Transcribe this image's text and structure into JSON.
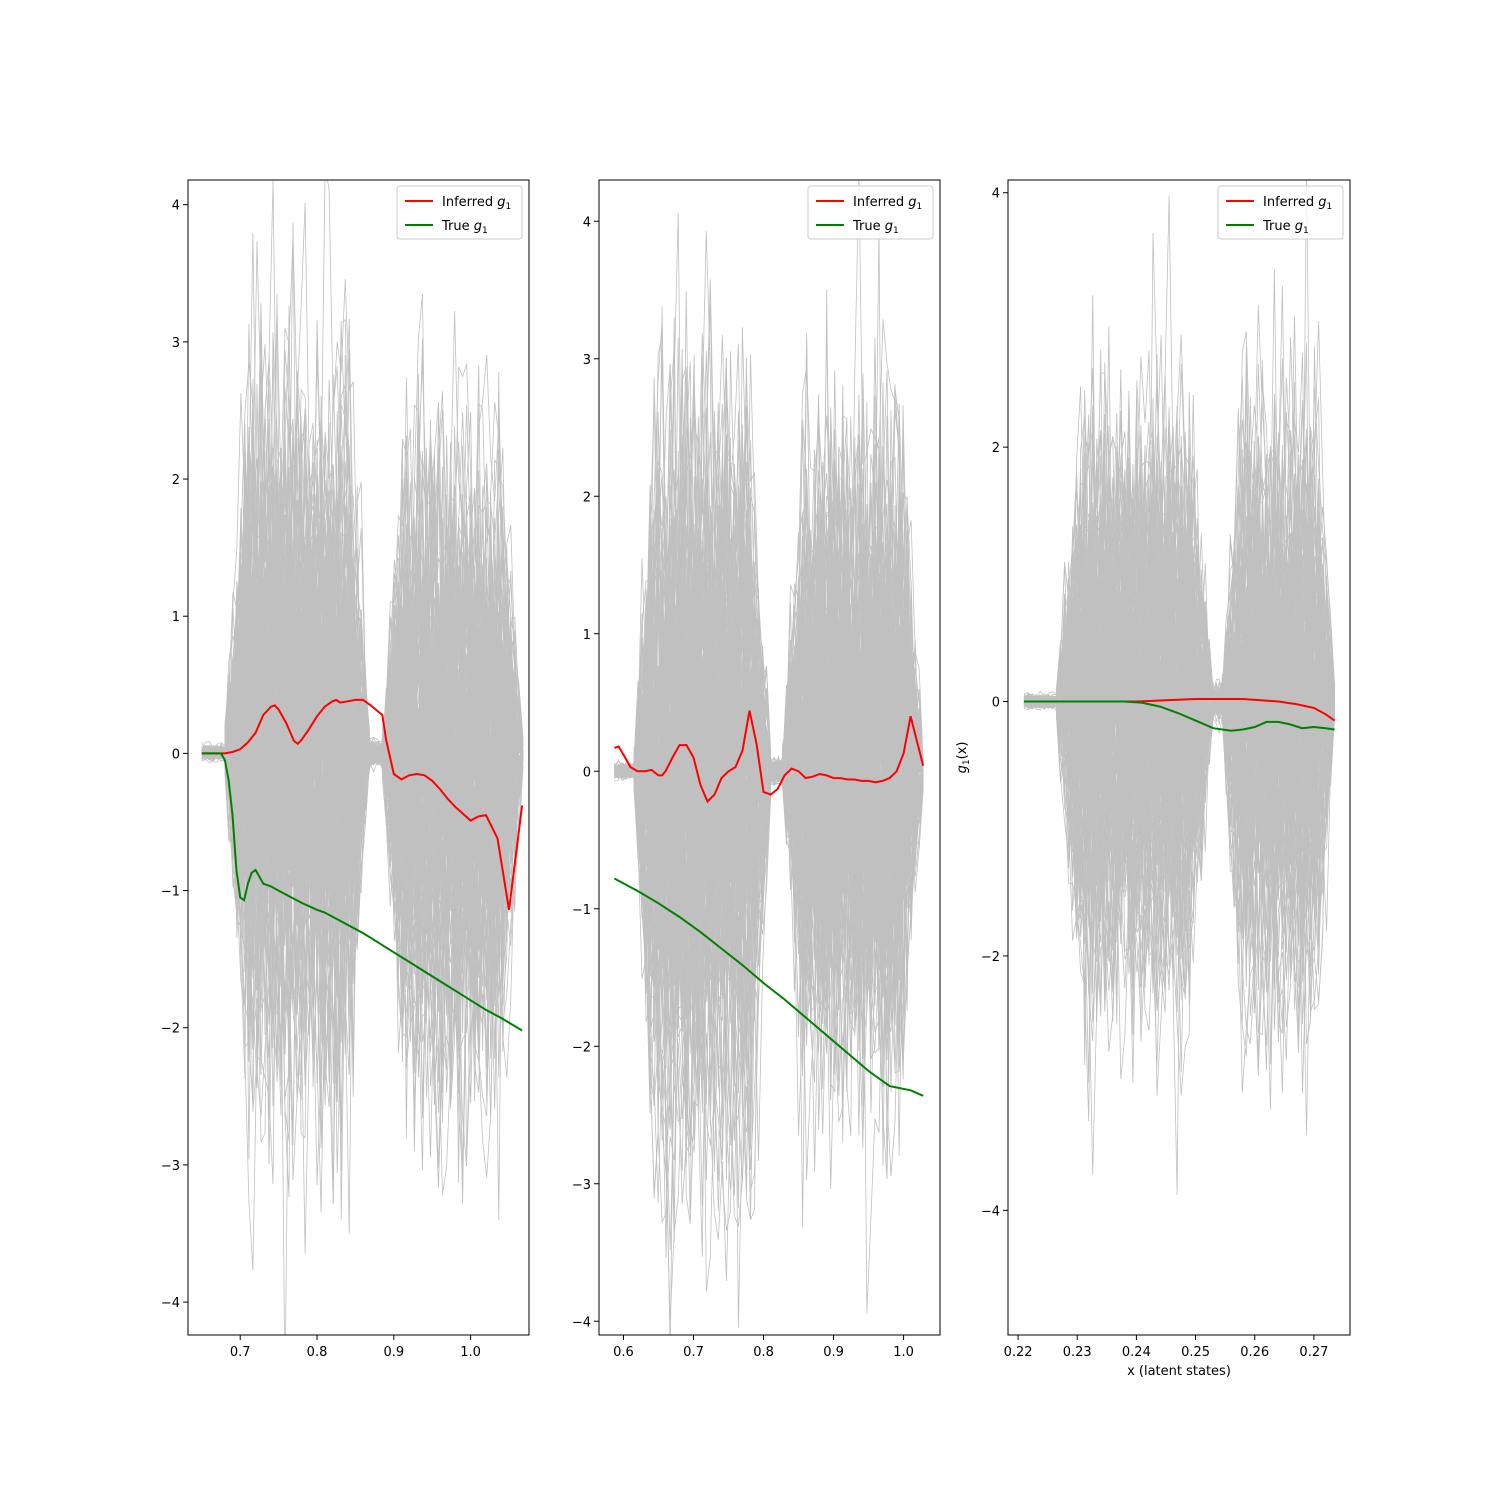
{
  "chart_data": [
    {
      "type": "line",
      "xticks": [
        "0.7",
        "0.8",
        "0.9",
        "1.0"
      ],
      "xtick_values": [
        0.7,
        0.8,
        0.9,
        1.0
      ],
      "yticks": [
        "4",
        "3",
        "2",
        "1",
        "0",
        "−1",
        "−2",
        "−3",
        "−4"
      ],
      "ytick_values": [
        4,
        3,
        2,
        1,
        0,
        -1,
        -2,
        -3,
        -4
      ],
      "xlim": [
        0.632,
        1.076
      ],
      "ylim": [
        -4.24,
        4.18
      ],
      "xlabel": "",
      "ylabel": "",
      "legend_position": "top-right",
      "legend": {
        "inferred": "Inferred g",
        "true": "True g",
        "subscript": "1"
      },
      "colors": {
        "inferred": "#ff0000",
        "true": "#008000",
        "samples": "#c0c0c0"
      },
      "samples": {
        "count": 120,
        "segments": [
          {
            "x0": 0.65,
            "x1": 0.68,
            "amp": 0.03
          },
          {
            "x0": 0.68,
            "x1": 0.868,
            "amp": 1.5
          },
          {
            "x0": 0.868,
            "x1": 0.885,
            "amp": 0.05
          },
          {
            "x0": 0.885,
            "x1": 1.068,
            "amp": 1.3
          }
        ]
      },
      "series": [
        {
          "name": "Inferred g",
          "x": [
            0.65,
            0.68,
            0.69,
            0.7,
            0.71,
            0.72,
            0.73,
            0.74,
            0.745,
            0.75,
            0.76,
            0.77,
            0.775,
            0.78,
            0.79,
            0.8,
            0.81,
            0.82,
            0.825,
            0.83,
            0.84,
            0.85,
            0.86,
            0.87,
            0.885,
            0.89,
            0.9,
            0.91,
            0.92,
            0.93,
            0.94,
            0.95,
            0.96,
            0.97,
            0.98,
            0.99,
            1.0,
            1.01,
            1.02,
            1.035,
            1.05,
            1.067
          ],
          "y": [
            0.0,
            0.0,
            0.01,
            0.03,
            0.08,
            0.15,
            0.28,
            0.34,
            0.35,
            0.32,
            0.22,
            0.09,
            0.07,
            0.1,
            0.18,
            0.27,
            0.34,
            0.38,
            0.39,
            0.37,
            0.38,
            0.39,
            0.39,
            0.35,
            0.28,
            0.1,
            -0.15,
            -0.19,
            -0.16,
            -0.15,
            -0.16,
            -0.2,
            -0.26,
            -0.33,
            -0.39,
            -0.44,
            -0.49,
            -0.46,
            -0.45,
            -0.62,
            -1.14,
            -0.38
          ]
        },
        {
          "name": "True g",
          "x": [
            0.65,
            0.675,
            0.68,
            0.685,
            0.69,
            0.695,
            0.7,
            0.705,
            0.71,
            0.715,
            0.72,
            0.725,
            0.73,
            0.74,
            0.75,
            0.76,
            0.78,
            0.8,
            0.81,
            0.82,
            0.84,
            0.86,
            0.88,
            0.9,
            0.92,
            0.94,
            0.96,
            0.98,
            1.0,
            1.02,
            1.04,
            1.067
          ],
          "y": [
            0.0,
            0.0,
            -0.05,
            -0.2,
            -0.45,
            -0.85,
            -1.05,
            -1.07,
            -0.95,
            -0.87,
            -0.85,
            -0.9,
            -0.95,
            -0.97,
            -1.0,
            -1.03,
            -1.09,
            -1.14,
            -1.16,
            -1.19,
            -1.25,
            -1.31,
            -1.38,
            -1.45,
            -1.52,
            -1.59,
            -1.66,
            -1.73,
            -1.8,
            -1.87,
            -1.93,
            -2.02
          ]
        }
      ]
    },
    {
      "type": "line",
      "xticks": [
        "0.6",
        "0.7",
        "0.8",
        "0.9",
        "1.0"
      ],
      "xtick_values": [
        0.6,
        0.7,
        0.8,
        0.9,
        1.0
      ],
      "yticks": [
        "4",
        "3",
        "2",
        "1",
        "0",
        "−1",
        "−2",
        "−3",
        "−4"
      ],
      "ytick_values": [
        4,
        3,
        2,
        1,
        0,
        -1,
        -2,
        -3,
        -4
      ],
      "xlim": [
        0.565,
        1.052
      ],
      "ylim": [
        -4.1,
        4.3
      ],
      "xlabel": "",
      "ylabel": "",
      "legend_position": "top-right",
      "legend": {
        "inferred": "Inferred g",
        "true": "True g",
        "subscript": "1"
      },
      "colors": {
        "inferred": "#ff0000",
        "true": "#008000",
        "samples": "#c0c0c0"
      },
      "samples": {
        "count": 120,
        "segments": [
          {
            "x0": 0.587,
            "x1": 0.615,
            "amp": 0.03
          },
          {
            "x0": 0.615,
            "x1": 0.81,
            "amp": 1.5
          },
          {
            "x0": 0.81,
            "x1": 0.827,
            "amp": 0.05
          },
          {
            "x0": 0.827,
            "x1": 1.028,
            "amp": 1.4
          }
        ]
      },
      "series": [
        {
          "name": "Inferred g",
          "x": [
            0.587,
            0.593,
            0.6,
            0.61,
            0.62,
            0.63,
            0.64,
            0.65,
            0.655,
            0.66,
            0.67,
            0.68,
            0.69,
            0.7,
            0.71,
            0.72,
            0.73,
            0.74,
            0.75,
            0.76,
            0.77,
            0.78,
            0.79,
            0.8,
            0.81,
            0.82,
            0.83,
            0.84,
            0.85,
            0.86,
            0.87,
            0.88,
            0.89,
            0.9,
            0.91,
            0.92,
            0.93,
            0.94,
            0.95,
            0.96,
            0.97,
            0.98,
            0.99,
            1.0,
            1.01,
            1.028
          ],
          "y": [
            0.17,
            0.18,
            0.12,
            0.03,
            0.0,
            0.0,
            0.01,
            -0.03,
            -0.03,
            0.0,
            0.1,
            0.19,
            0.19,
            0.1,
            -0.1,
            -0.22,
            -0.17,
            -0.05,
            0.0,
            0.03,
            0.15,
            0.44,
            0.2,
            -0.15,
            -0.17,
            -0.13,
            -0.03,
            0.02,
            0.0,
            -0.05,
            -0.04,
            -0.02,
            -0.03,
            -0.05,
            -0.05,
            -0.06,
            -0.06,
            -0.07,
            -0.07,
            -0.08,
            -0.07,
            -0.05,
            0.0,
            0.13,
            0.4,
            0.04
          ]
        },
        {
          "name": "True g",
          "x": [
            0.587,
            0.62,
            0.65,
            0.68,
            0.71,
            0.74,
            0.77,
            0.8,
            0.83,
            0.86,
            0.89,
            0.92,
            0.95,
            0.98,
            1.01,
            1.028
          ],
          "y": [
            -0.78,
            -0.87,
            -0.96,
            -1.06,
            -1.17,
            -1.29,
            -1.41,
            -1.54,
            -1.66,
            -1.79,
            -1.92,
            -2.05,
            -2.18,
            -2.29,
            -2.32,
            -2.36
          ]
        }
      ]
    },
    {
      "type": "line",
      "xticks": [
        "0.22",
        "0.23",
        "0.24",
        "0.25",
        "0.26",
        "0.27"
      ],
      "xtick_values": [
        0.22,
        0.23,
        0.24,
        0.25,
        0.26,
        0.27
      ],
      "yticks": [
        "4",
        "2",
        "0",
        "−2",
        "−4"
      ],
      "ytick_values": [
        4,
        2,
        0,
        -2,
        -4
      ],
      "xlim": [
        0.2183,
        0.2761
      ],
      "ylim": [
        -4.98,
        4.1
      ],
      "xlabel": "x (latent states)",
      "ylabel_main": "g",
      "ylabel_sub": "1",
      "ylabel_tail": "(x)",
      "legend_position": "top-right",
      "legend": {
        "inferred": "Inferred g",
        "true": "True g",
        "subscript": "1"
      },
      "colors": {
        "inferred": "#ff0000",
        "true": "#008000",
        "samples": "#c0c0c0"
      },
      "samples": {
        "count": 120,
        "segments": [
          {
            "x0": 0.221,
            "x1": 0.2265,
            "amp": 0.03
          },
          {
            "x0": 0.2265,
            "x1": 0.253,
            "amp": 1.35
          },
          {
            "x0": 0.253,
            "x1": 0.2545,
            "amp": 0.08
          },
          {
            "x0": 0.2545,
            "x1": 0.2735,
            "amp": 1.25
          }
        ]
      },
      "series": [
        {
          "name": "Inferred g",
          "x": [
            0.221,
            0.235,
            0.24,
            0.245,
            0.25,
            0.255,
            0.258,
            0.261,
            0.264,
            0.267,
            0.27,
            0.272,
            0.2735
          ],
          "y": [
            0.0,
            0.0,
            0.0,
            0.01,
            0.02,
            0.02,
            0.02,
            0.01,
            0.0,
            -0.02,
            -0.05,
            -0.1,
            -0.15
          ]
        },
        {
          "name": "True g",
          "x": [
            0.221,
            0.238,
            0.241,
            0.244,
            0.247,
            0.25,
            0.253,
            0.256,
            0.258,
            0.26,
            0.262,
            0.264,
            0.266,
            0.268,
            0.27,
            0.272,
            0.2735
          ],
          "y": [
            0.0,
            0.0,
            -0.01,
            -0.04,
            -0.09,
            -0.15,
            -0.21,
            -0.23,
            -0.22,
            -0.2,
            -0.16,
            -0.16,
            -0.18,
            -0.21,
            -0.2,
            -0.21,
            -0.22
          ]
        }
      ]
    }
  ]
}
